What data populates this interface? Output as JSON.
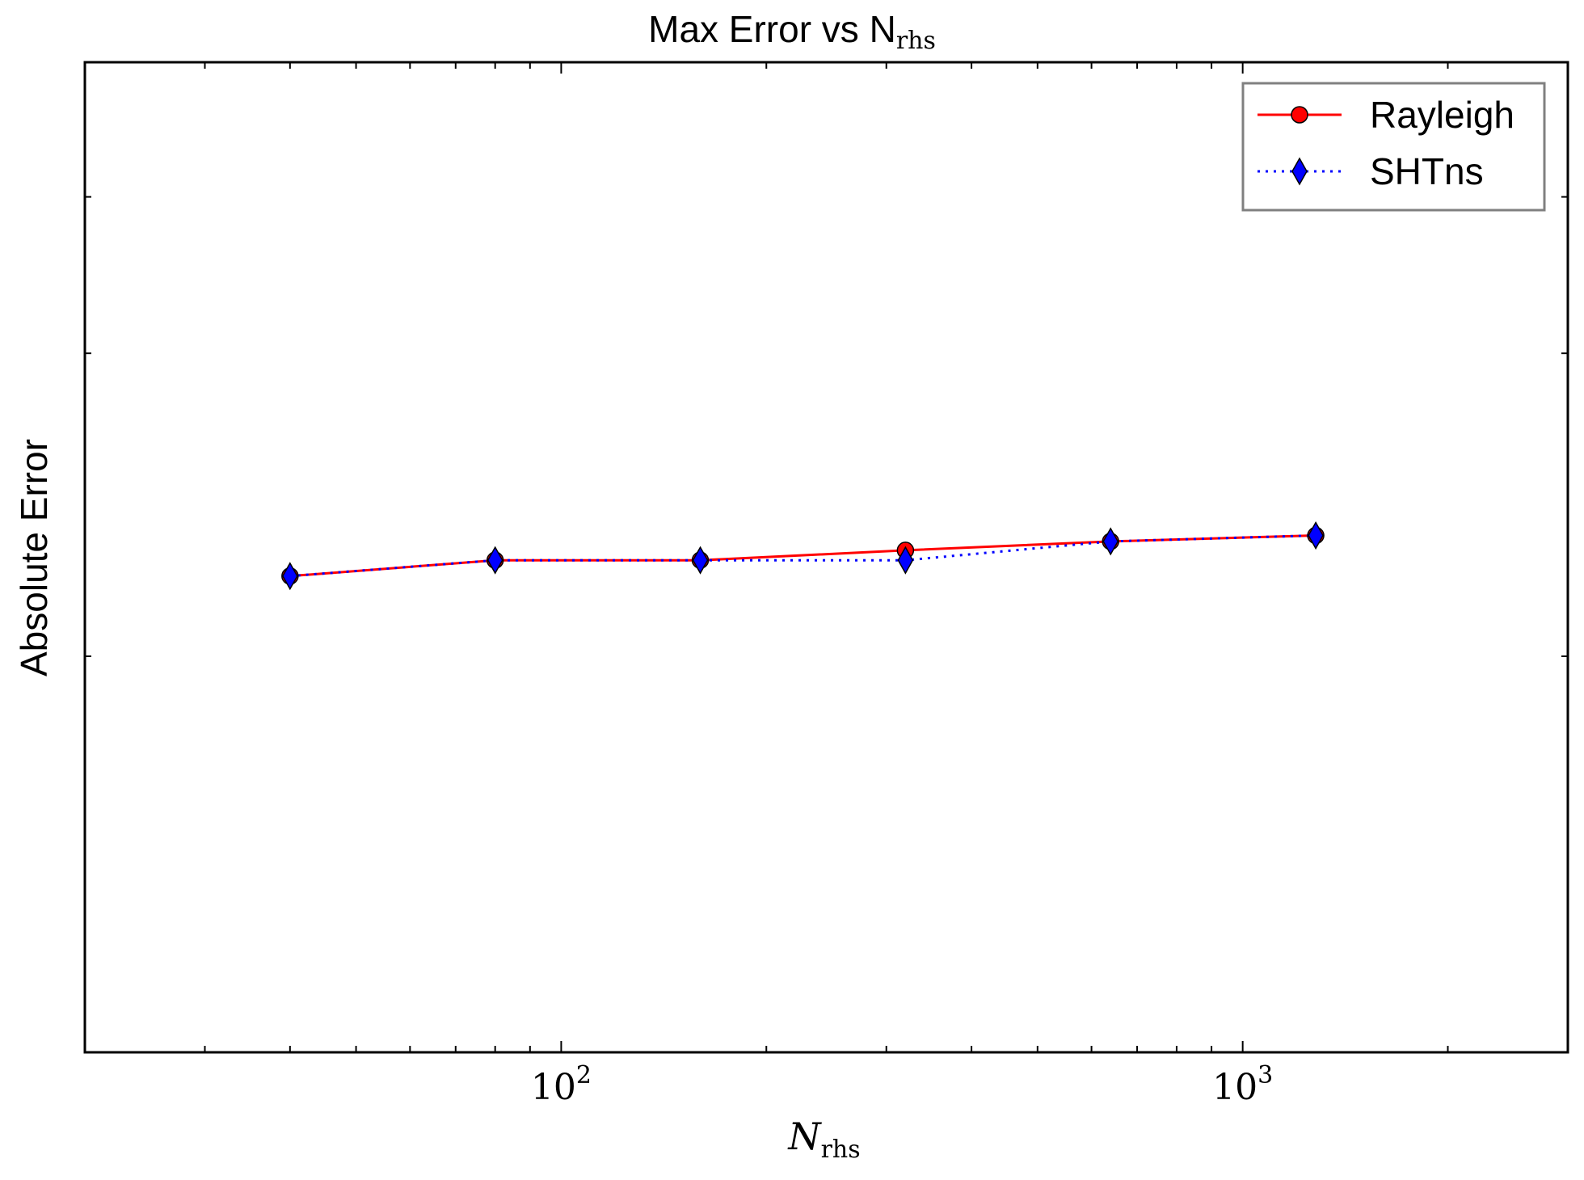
{
  "chart_data": {
    "type": "line",
    "title": "Max Error vs N",
    "title_math_subscript": "rhs",
    "xlabel": "N",
    "xlabel_subscript": "rhs",
    "ylabel": "Absolute Error",
    "xscale": "log",
    "xlim": [
      20,
      3000
    ],
    "x_ticks": [
      {
        "value": 100,
        "base": "10",
        "exponent": "2"
      },
      {
        "value": 1000,
        "base": "10",
        "exponent": "3"
      }
    ],
    "ylim": [
      0,
      1
    ],
    "grid": false,
    "legend_position": "top-right",
    "series": [
      {
        "name": "Rayleigh",
        "color": "#ff0000",
        "line_style": "solid",
        "marker": "circle",
        "x": [
          40,
          80,
          160,
          320,
          640,
          1280
        ],
        "y": [
          0.481,
          0.497,
          0.497,
          0.507,
          0.516,
          0.522
        ]
      },
      {
        "name": "SHTns",
        "color": "#0000ff",
        "line_style": "dotted",
        "marker": "diamond",
        "x": [
          40,
          80,
          160,
          320,
          640,
          1280
        ],
        "y": [
          0.481,
          0.497,
          0.497,
          0.497,
          0.516,
          0.522
        ]
      }
    ]
  }
}
